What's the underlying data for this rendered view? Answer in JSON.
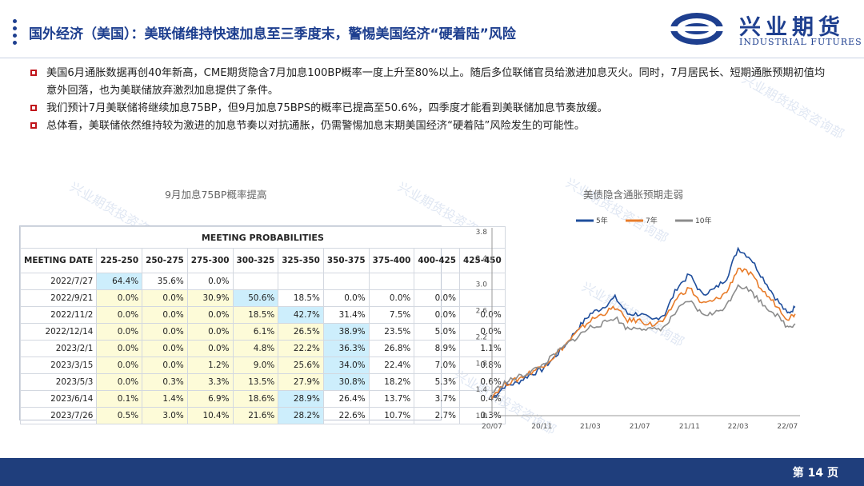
{
  "header": {
    "title": "国外经济（美国）：美联储维持快速加息至三季度末，警惕美国经济“硬着陆”风险",
    "logo_cn": "兴业期货",
    "logo_en": "INDUSTRIAL FUTURES"
  },
  "bullets": [
    "美国6月通胀数据再创40年新高，CME期货隐含7月加息100BP概率一度上升至80%以上。随后多位联储官员给激进加息灭火。同时，7月居民长、短期通胀预期初值均意外回落，也为美联储放弃激烈加息提供了条件。",
    "我们预计7月美联储将继续加息75BP，但9月加息75BPS的概率已提高至50.6%，四季度才能看到美联储加息节奏放缓。",
    "总体看，美联储依然维持较为激进的加息节奏以对抗通胀，仍需警惕加息末期美国经济“硬着陆”风险发生的可能性。"
  ],
  "left_chart_title": "9月加息75BP概率提高",
  "table": {
    "title": "MEETING PROBABILITIES",
    "date_header": "MEETING DATE",
    "columns": [
      "225-250",
      "250-275",
      "275-300",
      "300-325",
      "325-350",
      "350-375",
      "375-400",
      "400-425",
      "425-450"
    ],
    "rows": [
      {
        "date": "2022/7/27",
        "values": [
          "64.4%",
          "35.6%",
          "0.0%",
          "",
          "",
          "",
          "",
          "",
          ""
        ]
      },
      {
        "date": "2022/9/21",
        "values": [
          "0.0%",
          "0.0%",
          "30.9%",
          "50.6%",
          "18.5%",
          "0.0%",
          "0.0%",
          "0.0%",
          ""
        ]
      },
      {
        "date": "2022/11/2",
        "values": [
          "0.0%",
          "0.0%",
          "0.0%",
          "18.5%",
          "42.7%",
          "31.4%",
          "7.5%",
          "0.0%",
          "0.0%"
        ]
      },
      {
        "date": "2022/12/14",
        "values": [
          "0.0%",
          "0.0%",
          "0.0%",
          "6.1%",
          "26.5%",
          "38.9%",
          "23.5%",
          "5.0%",
          "0.0%"
        ]
      },
      {
        "date": "2023/2/1",
        "values": [
          "0.0%",
          "0.0%",
          "0.0%",
          "4.8%",
          "22.2%",
          "36.3%",
          "26.8%",
          "8.9%",
          "1.1%"
        ]
      },
      {
        "date": "2023/3/15",
        "values": [
          "0.0%",
          "0.0%",
          "1.2%",
          "9.0%",
          "25.6%",
          "34.0%",
          "22.4%",
          "7.0%",
          "0.8%"
        ]
      },
      {
        "date": "2023/5/3",
        "values": [
          "0.0%",
          "0.3%",
          "3.3%",
          "13.5%",
          "27.9%",
          "30.8%",
          "18.2%",
          "5.3%",
          "0.6%"
        ]
      },
      {
        "date": "2023/6/14",
        "values": [
          "0.1%",
          "1.4%",
          "6.9%",
          "18.6%",
          "28.9%",
          "26.4%",
          "13.7%",
          "3.7%",
          "0.4%"
        ]
      },
      {
        "date": "2023/7/26",
        "values": [
          "0.5%",
          "3.0%",
          "10.4%",
          "21.6%",
          "28.2%",
          "22.6%",
          "10.7%",
          "2.7%",
          "0.3%"
        ]
      }
    ],
    "highlight_column_by_row": [
      0,
      3,
      4,
      5,
      5,
      5,
      5,
      4,
      4
    ],
    "colors": {
      "yellow": "#fdfbd8",
      "blue": "#cdeefc"
    }
  },
  "chart_data": {
    "type": "line",
    "title": "美债隐含通胀预期走弱",
    "xlabel": "",
    "ylabel": "",
    "x_ticks": [
      "20/07",
      "20/11",
      "21/03",
      "21/07",
      "21/11",
      "22/03",
      "22/07"
    ],
    "y_ticks": [
      "1.0",
      "1.4",
      "1.8",
      "2.2",
      "2.6",
      "3.0",
      "3.4",
      "3.8"
    ],
    "ylim": [
      1.0,
      3.8
    ],
    "legend_position": "top",
    "grid": false,
    "series": [
      {
        "name": "5年",
        "color": "#1f4e9c",
        "points": [
          [
            "2020-07-01",
            1.26
          ],
          [
            "2020-08-01",
            1.45
          ],
          [
            "2020-09-01",
            1.5
          ],
          [
            "2020-10-01",
            1.62
          ],
          [
            "2020-11-01",
            1.7
          ],
          [
            "2020-12-01",
            1.88
          ],
          [
            "2021-01-01",
            2.1
          ],
          [
            "2021-02-01",
            2.35
          ],
          [
            "2021-03-01",
            2.55
          ],
          [
            "2021-04-01",
            2.65
          ],
          [
            "2021-05-01",
            2.8
          ],
          [
            "2021-06-01",
            2.55
          ],
          [
            "2021-07-01",
            2.55
          ],
          [
            "2021-08-01",
            2.45
          ],
          [
            "2021-09-01",
            2.55
          ],
          [
            "2021-10-01",
            2.95
          ],
          [
            "2021-11-01",
            3.15
          ],
          [
            "2021-12-01",
            2.85
          ],
          [
            "2022-01-01",
            2.92
          ],
          [
            "2022-02-01",
            3.1
          ],
          [
            "2022-03-01",
            3.55
          ],
          [
            "2022-04-01",
            3.4
          ],
          [
            "2022-05-01",
            3.1
          ],
          [
            "2022-06-01",
            2.8
          ],
          [
            "2022-07-01",
            2.55
          ],
          [
            "2022-07-20",
            2.65
          ]
        ]
      },
      {
        "name": "7年",
        "color": "#e87c2a",
        "points": [
          [
            "2020-07-01",
            1.3
          ],
          [
            "2020-08-01",
            1.48
          ],
          [
            "2020-09-01",
            1.55
          ],
          [
            "2020-10-01",
            1.65
          ],
          [
            "2020-11-01",
            1.75
          ],
          [
            "2020-12-01",
            1.9
          ],
          [
            "2021-01-01",
            2.1
          ],
          [
            "2021-02-01",
            2.3
          ],
          [
            "2021-03-01",
            2.45
          ],
          [
            "2021-04-01",
            2.55
          ],
          [
            "2021-05-01",
            2.65
          ],
          [
            "2021-06-01",
            2.45
          ],
          [
            "2021-07-01",
            2.45
          ],
          [
            "2021-08-01",
            2.38
          ],
          [
            "2021-09-01",
            2.45
          ],
          [
            "2021-10-01",
            2.8
          ],
          [
            "2021-11-01",
            2.95
          ],
          [
            "2021-12-01",
            2.7
          ],
          [
            "2022-01-01",
            2.75
          ],
          [
            "2022-02-01",
            2.88
          ],
          [
            "2022-03-01",
            3.25
          ],
          [
            "2022-04-01",
            3.15
          ],
          [
            "2022-05-01",
            2.9
          ],
          [
            "2022-06-01",
            2.7
          ],
          [
            "2022-07-01",
            2.48
          ],
          [
            "2022-07-20",
            2.55
          ]
        ]
      },
      {
        "name": "10年",
        "color": "#8c8c8c",
        "points": [
          [
            "2020-07-01",
            1.35
          ],
          [
            "2020-08-01",
            1.5
          ],
          [
            "2020-09-01",
            1.58
          ],
          [
            "2020-10-01",
            1.66
          ],
          [
            "2020-11-01",
            1.76
          ],
          [
            "2020-12-01",
            1.92
          ],
          [
            "2021-01-01",
            2.08
          ],
          [
            "2021-02-01",
            2.22
          ],
          [
            "2021-03-01",
            2.35
          ],
          [
            "2021-04-01",
            2.4
          ],
          [
            "2021-05-01",
            2.5
          ],
          [
            "2021-06-01",
            2.32
          ],
          [
            "2021-07-01",
            2.35
          ],
          [
            "2021-08-01",
            2.3
          ],
          [
            "2021-09-01",
            2.35
          ],
          [
            "2021-10-01",
            2.6
          ],
          [
            "2021-11-01",
            2.75
          ],
          [
            "2021-12-01",
            2.55
          ],
          [
            "2022-01-01",
            2.55
          ],
          [
            "2022-02-01",
            2.68
          ],
          [
            "2022-03-01",
            3.0
          ],
          [
            "2022-04-01",
            2.9
          ],
          [
            "2022-05-01",
            2.7
          ],
          [
            "2022-06-01",
            2.55
          ],
          [
            "2022-07-01",
            2.35
          ],
          [
            "2022-07-20",
            2.4
          ]
        ]
      }
    ]
  },
  "watermark": "兴业期货投资咨询部",
  "footer": {
    "page": "第 14 页"
  }
}
